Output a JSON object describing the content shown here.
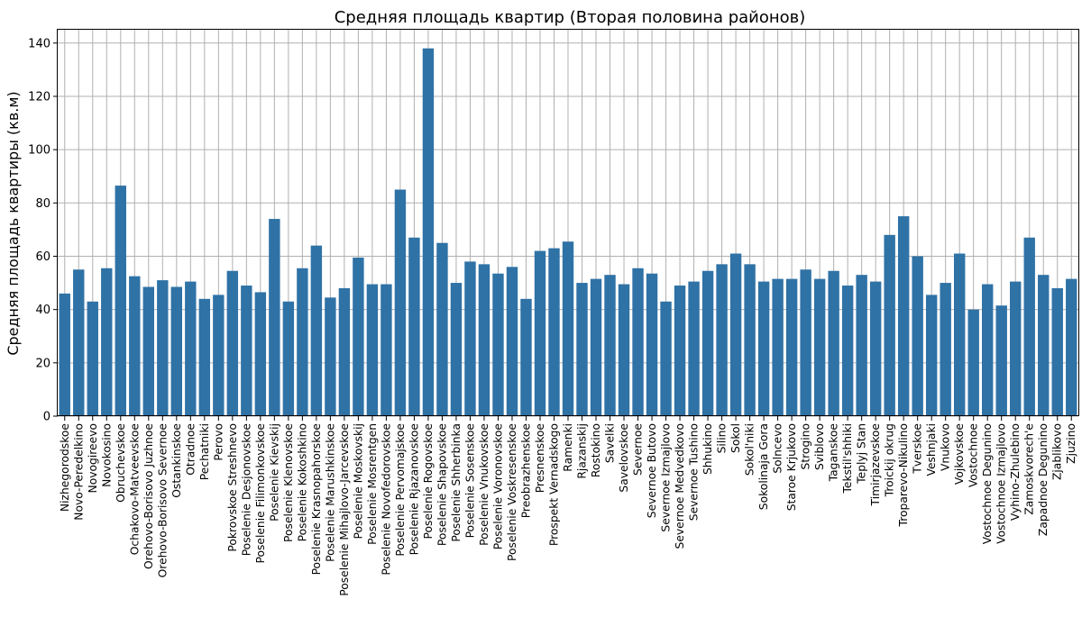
{
  "chart_data": {
    "type": "bar",
    "title": "Средняя площадь квартир (Вторая половина районов)",
    "xlabel": "",
    "ylabel": "Средняя площадь квартиры (кв.м)",
    "ylim": [
      0,
      145
    ],
    "yticks": [
      0,
      20,
      40,
      60,
      80,
      100,
      120,
      140
    ],
    "grid": true,
    "bar_color": "#2f72a6",
    "categories": [
      "Nizhegorodskoe",
      "Novo-Peredelkino",
      "Novogireevo",
      "Novokosino",
      "Obruchevskoe",
      "Ochakovo-Matveevskoe",
      "Orehovo-Borisovo Juzhnoe",
      "Orehovo-Borisovo Severnoe",
      "Ostankinskoe",
      "Otradnoe",
      "Pechatniki",
      "Perovo",
      "Pokrovskoe Streshnevo",
      "Poselenie Desjonovskoe",
      "Poselenie Filimonkovskoe",
      "Poselenie Kievskij",
      "Poselenie Klenovskoe",
      "Poselenie Kokoshkino",
      "Poselenie Krasnopahorskoe",
      "Poselenie Marushkinskoe",
      "Poselenie Mihajlovo-Jarcevskoe",
      "Poselenie Moskovskij",
      "Poselenie Mosrentgen",
      "Poselenie Novofedorovskoe",
      "Poselenie Pervomajskoe",
      "Poselenie Rjazanovskoe",
      "Poselenie Rogovskoe",
      "Poselenie Shapovskoe",
      "Poselenie Shherbinka",
      "Poselenie Sosenskoe",
      "Poselenie Vnukovskoe",
      "Poselenie Voronovskoe",
      "Poselenie Voskresenskoe",
      "Preobrazhenskoe",
      "Presnenskoe",
      "Prospekt Vernadskogo",
      "Ramenki",
      "Rjazanskij",
      "Rostokino",
      "Savelki",
      "Savelovskoe",
      "Severnoe",
      "Severnoe Butovo",
      "Severnoe Izmajlovo",
      "Severnoe Medvedkovo",
      "Severnoe Tushino",
      "Shhukino",
      "Silino",
      "Sokol",
      "Sokol'niki",
      "Sokolinaja Gora",
      "Solncevo",
      "Staroe Krjukovo",
      "Strogino",
      "Sviblovo",
      "Taganskoe",
      "Tekstil'shhiki",
      "Teplyj Stan",
      "Timirjazevskoe",
      "Troickij okrug",
      "Troparevo-Nikulino",
      "Tverskoe",
      "Veshnjaki",
      "Vnukovo",
      "Vojkovskoe",
      "Vostochnoe",
      "Vostochnoe Degunino",
      "Vostochnoe Izmajlovo",
      "Vyhino-Zhulebino",
      "Zamoskvorech'e",
      "Zapadnoe Degunino",
      "Zjablikovo",
      "Zjuzino"
    ],
    "values": [
      46,
      55,
      43,
      55.5,
      86.5,
      52.5,
      48.5,
      51,
      48.5,
      50.5,
      44,
      45.5,
      54.5,
      49,
      46.5,
      74,
      43,
      55.5,
      64,
      44.5,
      48,
      59.5,
      49.5,
      49.5,
      85,
      67,
      138,
      65,
      50,
      58,
      57,
      53.5,
      56,
      44,
      62,
      63,
      65.5,
      50,
      51.5,
      53,
      49.5,
      55.5,
      53.5,
      43,
      49,
      50.5,
      54.5,
      57,
      61,
      57,
      50.5,
      51.5,
      51.5,
      55,
      51.5,
      54.5,
      49,
      53,
      50.5,
      68,
      75,
      60,
      45.5,
      50,
      61,
      40,
      49.5,
      41.5,
      50.5,
      67,
      53,
      48,
      51.5
    ]
  }
}
